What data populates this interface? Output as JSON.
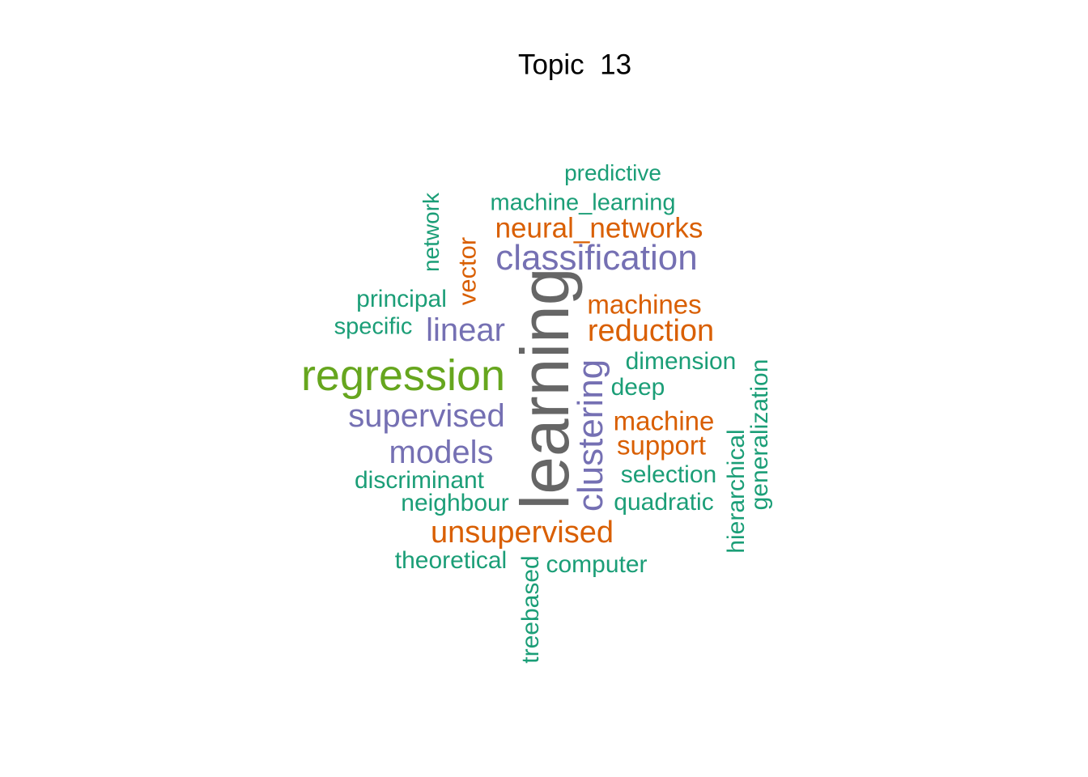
{
  "title": "Topic  13",
  "palette": {
    "green": "#1b9e77",
    "orange": "#d95f02",
    "purple": "#7570b3",
    "lime": "#66a61e",
    "gray": "#666666"
  },
  "words": [
    {
      "text": "learning",
      "color": "#666666",
      "vertical": true
    },
    {
      "text": "regression",
      "color": "#66a61e",
      "vertical": false
    },
    {
      "text": "classification",
      "color": "#7570b3",
      "vertical": false
    },
    {
      "text": "clustering",
      "color": "#7570b3",
      "vertical": true
    },
    {
      "text": "supervised",
      "color": "#7570b3",
      "vertical": false
    },
    {
      "text": "models",
      "color": "#7570b3",
      "vertical": false
    },
    {
      "text": "linear",
      "color": "#7570b3",
      "vertical": false
    },
    {
      "text": "neural_networks",
      "color": "#d95f02",
      "vertical": false
    },
    {
      "text": "unsupervised",
      "color": "#d95f02",
      "vertical": false
    },
    {
      "text": "reduction",
      "color": "#d95f02",
      "vertical": false
    },
    {
      "text": "machines",
      "color": "#d95f02",
      "vertical": false
    },
    {
      "text": "machine",
      "color": "#d95f02",
      "vertical": false
    },
    {
      "text": "support",
      "color": "#d95f02",
      "vertical": false
    },
    {
      "text": "vector",
      "color": "#d95f02",
      "vertical": true
    },
    {
      "text": "machine_learning",
      "color": "#1b9e77",
      "vertical": false
    },
    {
      "text": "predictive",
      "color": "#1b9e77",
      "vertical": false
    },
    {
      "text": "network",
      "color": "#1b9e77",
      "vertical": true
    },
    {
      "text": "principal",
      "color": "#1b9e77",
      "vertical": false
    },
    {
      "text": "specific",
      "color": "#1b9e77",
      "vertical": false
    },
    {
      "text": "dimension",
      "color": "#1b9e77",
      "vertical": false
    },
    {
      "text": "deep",
      "color": "#1b9e77",
      "vertical": false
    },
    {
      "text": "selection",
      "color": "#1b9e77",
      "vertical": false
    },
    {
      "text": "quadratic",
      "color": "#1b9e77",
      "vertical": false
    },
    {
      "text": "discriminant",
      "color": "#1b9e77",
      "vertical": false
    },
    {
      "text": "neighbour",
      "color": "#1b9e77",
      "vertical": false
    },
    {
      "text": "theoretical",
      "color": "#1b9e77",
      "vertical": false
    },
    {
      "text": "computer",
      "color": "#1b9e77",
      "vertical": false
    },
    {
      "text": "treebased",
      "color": "#1b9e77",
      "vertical": true
    },
    {
      "text": "hierarchical",
      "color": "#1b9e77",
      "vertical": true
    },
    {
      "text": "generalization",
      "color": "#1b9e77",
      "vertical": true
    }
  ]
}
